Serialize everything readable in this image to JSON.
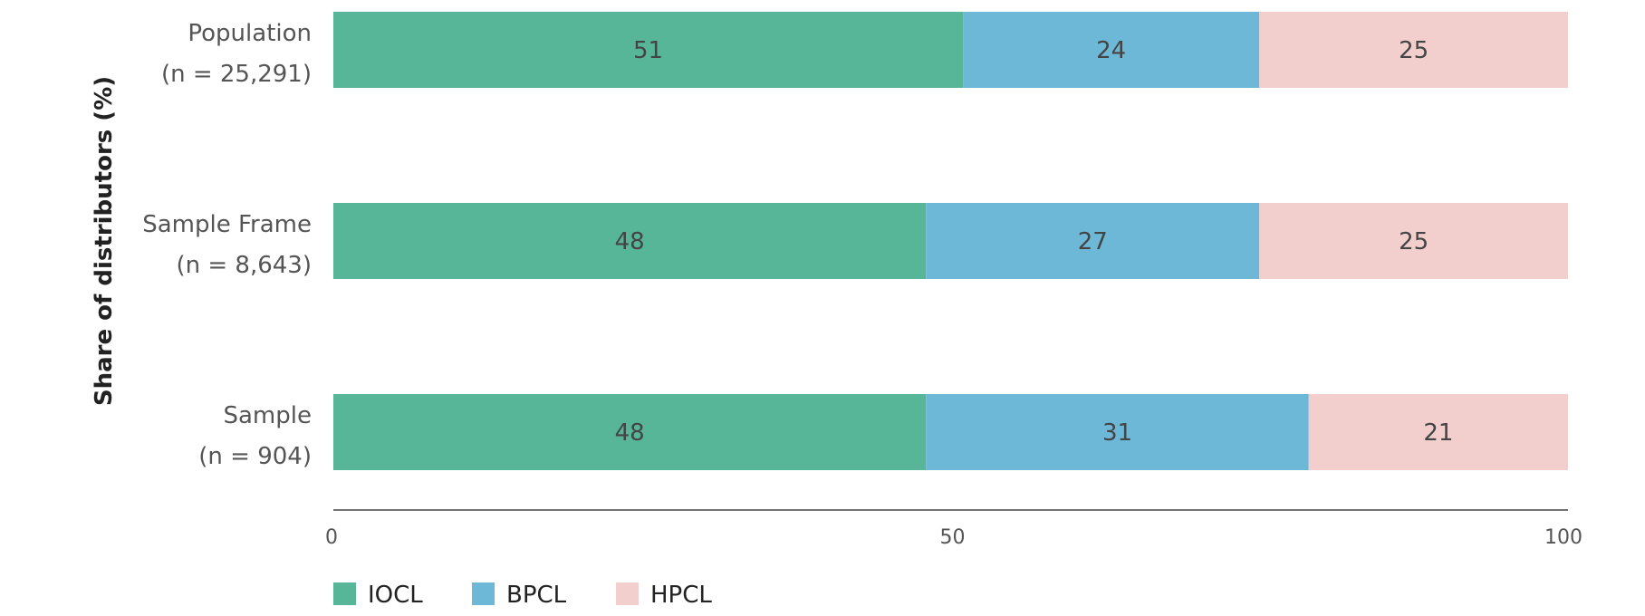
{
  "chart_data": {
    "type": "bar",
    "orientation": "horizontal",
    "stacked": true,
    "ylabel": "Share of distributors (%)",
    "xlim": [
      0,
      100
    ],
    "x_ticks": [
      "0",
      "50",
      "100"
    ],
    "grid": false,
    "legend_position": "bottom-left",
    "categories": [
      {
        "line1": "Population",
        "line2": "(n = 25,291)"
      },
      {
        "line1": "Sample Frame",
        "line2": "(n = 8,643)"
      },
      {
        "line1": "Sample",
        "line2": "(n = 904)"
      }
    ],
    "series": [
      {
        "name": "IOCL",
        "color": "#57b697",
        "values": [
          51,
          48,
          48
        ]
      },
      {
        "name": "BPCL",
        "color": "#6db8d7",
        "values": [
          24,
          27,
          31
        ]
      },
      {
        "name": "HPCL",
        "color": "#f2cfcd",
        "values": [
          25,
          25,
          21
        ]
      }
    ]
  }
}
